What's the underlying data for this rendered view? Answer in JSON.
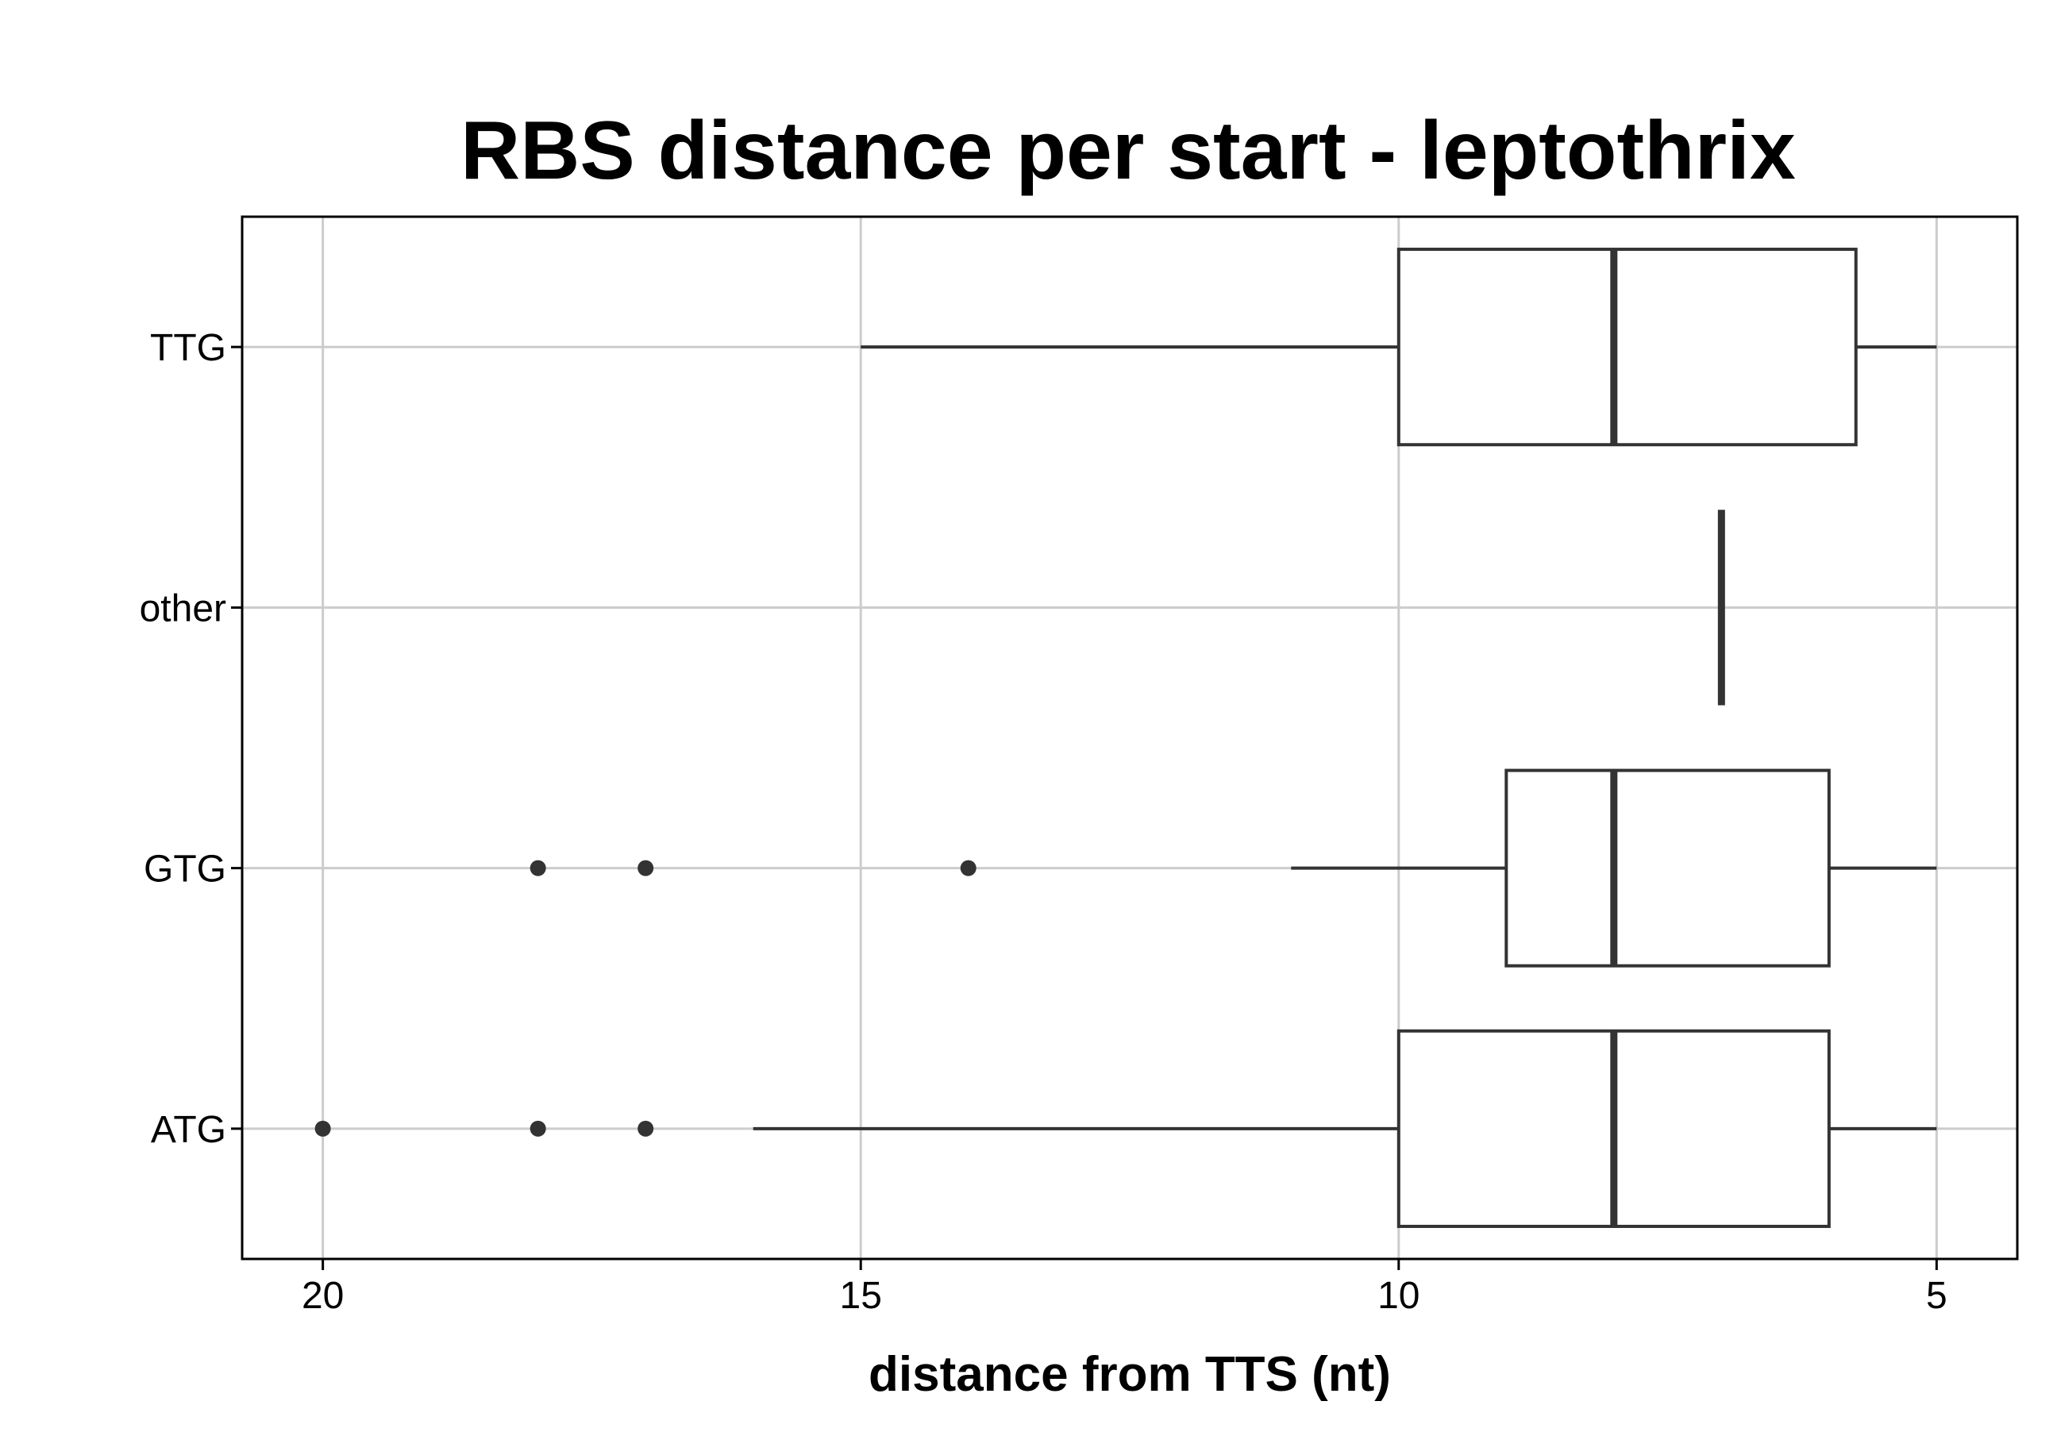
{
  "chart_data": {
    "type": "boxplot",
    "orientation": "horizontal",
    "title": "RBS distance per start - leptothrix",
    "xlabel": "distance from TTS (nt)",
    "ylabel": "",
    "x_reversed": true,
    "xlim": [
      20.75,
      4.25
    ],
    "x_ticks": [
      20,
      15,
      10,
      5
    ],
    "x_tick_labels": [
      "20",
      "15",
      "10",
      "5"
    ],
    "grid": true,
    "categories": [
      "ATG",
      "GTG",
      "other",
      "TTG"
    ],
    "boxes": [
      {
        "category": "ATG",
        "whisker_low": 5,
        "q1": 6,
        "median": 8,
        "q3": 10,
        "whisker_high": 16,
        "outliers": [
          17,
          18,
          20
        ]
      },
      {
        "category": "GTG",
        "whisker_low": 5,
        "q1": 6,
        "median": 8,
        "q3": 9,
        "whisker_high": 11,
        "outliers": [
          14,
          17,
          18
        ]
      },
      {
        "category": "other",
        "whisker_low": 7,
        "q1": 7,
        "median": 7,
        "q3": 7,
        "whisker_high": 7,
        "outliers": []
      },
      {
        "category": "TTG",
        "whisker_low": 5,
        "q1": 5.75,
        "median": 8,
        "q3": 10,
        "whisker_high": 15,
        "outliers": []
      }
    ],
    "colors": {
      "box_stroke": "#333333",
      "box_fill": "#ffffff",
      "grid": "#cccccc",
      "axis": "#000000",
      "outlier": "#333333"
    }
  }
}
